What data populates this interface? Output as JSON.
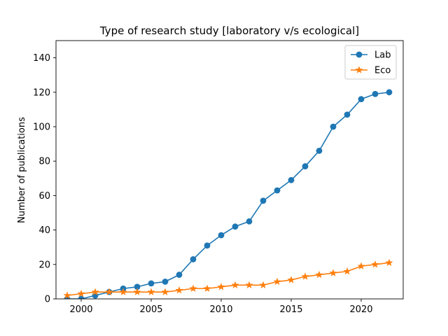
{
  "chart_data": {
    "type": "line",
    "title": "Type of research study [laboratory v/s ecological]",
    "xlabel": "",
    "ylabel": "Number of publications",
    "xlim": [
      1998.2,
      2023.0
    ],
    "ylim": [
      0,
      150
    ],
    "xticks": [
      2000,
      2005,
      2010,
      2015,
      2020
    ],
    "yticks": [
      0,
      20,
      40,
      60,
      80,
      100,
      120,
      140
    ],
    "legend_position": "top-right",
    "grid": false,
    "x": [
      1999,
      2000,
      2001,
      2002,
      2003,
      2004,
      2005,
      2006,
      2007,
      2008,
      2009,
      2010,
      2011,
      2012,
      2013,
      2014,
      2015,
      2016,
      2017,
      2018,
      2019,
      2020,
      2021,
      2022
    ],
    "series": [
      {
        "name": "Lab",
        "color": "#1f77b4",
        "marker": "circle",
        "values": [
          0,
          0,
          2,
          4,
          6,
          7,
          9,
          10,
          14,
          23,
          31,
          37,
          42,
          45,
          57,
          63,
          69,
          77,
          86,
          100,
          107,
          116,
          119,
          120
        ]
      },
      {
        "name": "Eco",
        "color": "#ff7f0e",
        "marker": "star",
        "values": [
          2,
          3,
          4,
          4,
          4,
          4,
          4,
          4,
          5,
          6,
          6,
          7,
          8,
          8,
          8,
          10,
          11,
          13,
          14,
          15,
          16,
          19,
          20,
          21
        ]
      }
    ]
  }
}
